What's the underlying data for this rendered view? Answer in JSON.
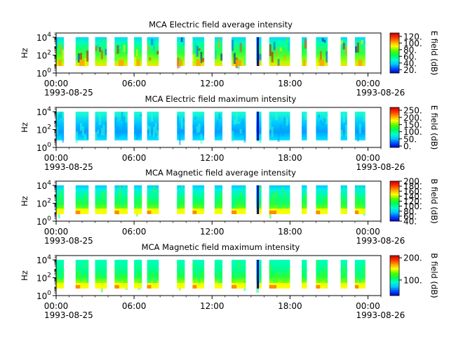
{
  "chart_data": [
    {
      "type": "heatmap",
      "title": "MCA  Electric field average intensity",
      "ylabel": "Hz",
      "colorbar_label": "E field (dB)",
      "colorbar_ticks": [
        "20.",
        "40.",
        "60.",
        "80.",
        "100.",
        "120."
      ],
      "colorbar_range": [
        10,
        130
      ],
      "y_ticks": [
        {
          "base": "10",
          "exp": "0"
        },
        {
          "base": "10",
          "exp": "2"
        },
        {
          "base": "10",
          "exp": "4"
        }
      ],
      "x_ticks": [
        "00:00",
        "06:00",
        "12:00",
        "18:00",
        "00:00"
      ],
      "x_date_labels": [
        "1993-08-25",
        "1993-08-26"
      ],
      "ylim": [
        1,
        30000
      ]
    },
    {
      "type": "heatmap",
      "title": "MCA  Electric field maximum intensity",
      "ylabel": "Hz",
      "colorbar_label": "E field (dB)",
      "colorbar_ticks": [
        "0.",
        "50.",
        "100.",
        "150.",
        "200.",
        "250."
      ],
      "colorbar_range": [
        -10,
        270
      ],
      "y_ticks": [
        {
          "base": "10",
          "exp": "0"
        },
        {
          "base": "10",
          "exp": "2"
        },
        {
          "base": "10",
          "exp": "4"
        }
      ],
      "x_ticks": [
        "00:00",
        "06:00",
        "12:00",
        "18:00",
        "00:00"
      ],
      "x_date_labels": [
        "1993-08-25",
        "1993-08-26"
      ],
      "ylim": [
        1,
        30000
      ]
    },
    {
      "type": "heatmap",
      "title": "MCA  Magnetic field average intensity",
      "ylabel": "Hz",
      "colorbar_label": "B field (dB)",
      "colorbar_ticks": [
        "40.",
        "60.",
        "80.",
        "100.",
        "120.",
        "140.",
        "160.",
        "180.",
        "200."
      ],
      "colorbar_range": [
        40,
        200
      ],
      "y_ticks": [
        {
          "base": "10",
          "exp": "0"
        },
        {
          "base": "10",
          "exp": "2"
        },
        {
          "base": "10",
          "exp": "4"
        }
      ],
      "x_ticks": [
        "00:00",
        "06:00",
        "12:00",
        "18:00",
        "00:00"
      ],
      "x_date_labels": [
        "1993-08-25",
        "1993-08-26"
      ],
      "ylim": [
        1,
        30000
      ]
    },
    {
      "type": "heatmap",
      "title": "MCA  Magnetic field maximum intensity",
      "ylabel": "Hz",
      "colorbar_label": "B field (dB)",
      "colorbar_ticks": [
        "100.",
        "200."
      ],
      "colorbar_range": [
        30,
        210
      ],
      "y_ticks": [
        {
          "base": "10",
          "exp": "0"
        },
        {
          "base": "10",
          "exp": "2"
        },
        {
          "base": "10",
          "exp": "4"
        }
      ],
      "x_ticks": [
        "00:00",
        "06:00",
        "12:00",
        "18:00",
        "00:00"
      ],
      "x_date_labels": [
        "1993-08-25",
        "1993-08-26"
      ],
      "ylim": [
        1,
        30000
      ]
    }
  ],
  "data_blocks_utc_hours": [
    [
      0.0,
      0.6
    ],
    [
      1.5,
      2.5
    ],
    [
      3.0,
      3.9
    ],
    [
      4.5,
      5.5
    ],
    [
      6.0,
      6.6
    ],
    [
      7.0,
      7.9
    ],
    [
      9.3,
      9.9
    ],
    [
      10.5,
      11.4
    ],
    [
      12.2,
      12.8
    ],
    [
      13.5,
      14.6
    ],
    [
      15.4,
      15.8
    ],
    [
      16.4,
      18.0
    ],
    [
      18.9,
      19.3
    ],
    [
      20.0,
      20.9
    ],
    [
      21.9,
      22.4
    ],
    [
      23.0,
      23.8
    ]
  ],
  "colors": {
    "colormap": [
      "#0000c8",
      "#0050ff",
      "#00c8ff",
      "#00ffc8",
      "#00ff50",
      "#50ff00",
      "#ffff00",
      "#ffa000",
      "#ff3000",
      "#c80000"
    ]
  }
}
